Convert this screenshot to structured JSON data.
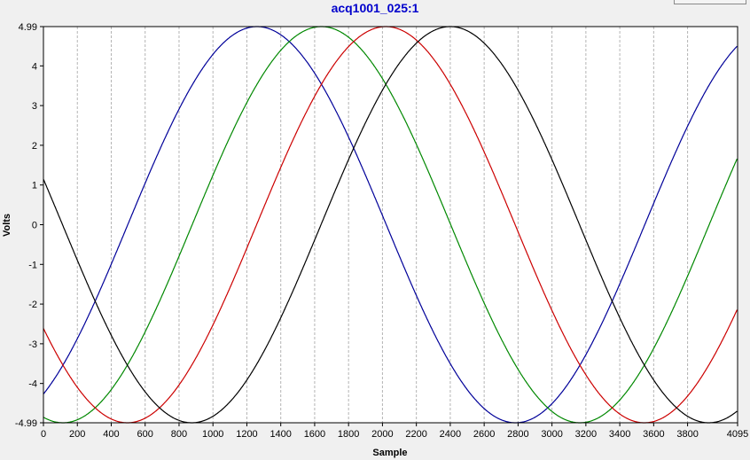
{
  "window": {
    "title": "acq1001_025:1"
  },
  "chart_data": {
    "type": "line",
    "title": "acq1001_025:1",
    "xlabel": "Sample",
    "ylabel": "Volts",
    "xlim": [
      0,
      4095
    ],
    "ylim": [
      -4.99,
      4.99
    ],
    "x_ticks": [
      "0",
      "200",
      "400",
      "600",
      "800",
      "1000",
      "1200",
      "1400",
      "1600",
      "1800",
      "2000",
      "2200",
      "2400",
      "2600",
      "2800",
      "3000",
      "3200",
      "3400",
      "3600",
      "3800",
      "4095"
    ],
    "y_ticks": [
      "4.99",
      "4",
      "3",
      "2",
      "1",
      "0",
      "-1",
      "-2",
      "-3",
      "-4",
      "-4.99"
    ],
    "grid": true,
    "series": [
      {
        "color": "#000099",
        "amplitude": 4.99,
        "period": 3050,
        "peak_x": [
          1260,
          4310
        ],
        "trough_x": [
          2785
        ],
        "start_y": -4.15,
        "end_y": 4.45
      },
      {
        "color": "#008800",
        "amplitude": 4.99,
        "period": 3050,
        "peak_x": [
          1640
        ],
        "trough_x": [
          115,
          3165
        ],
        "start_y": -4.85,
        "end_y": 1.55
      },
      {
        "color": "#cc0000",
        "amplitude": 4.99,
        "period": 3050,
        "peak_x": [
          2020
        ],
        "trough_x": [
          495,
          3545
        ],
        "start_y": -2.75,
        "end_y": -2.2
      },
      {
        "color": "#000000",
        "amplitude": 4.99,
        "period": 3050,
        "peak_x": [
          2400
        ],
        "trough_x": [
          875,
          3925
        ],
        "start_y": 1.05,
        "end_y": -4.75
      }
    ]
  }
}
